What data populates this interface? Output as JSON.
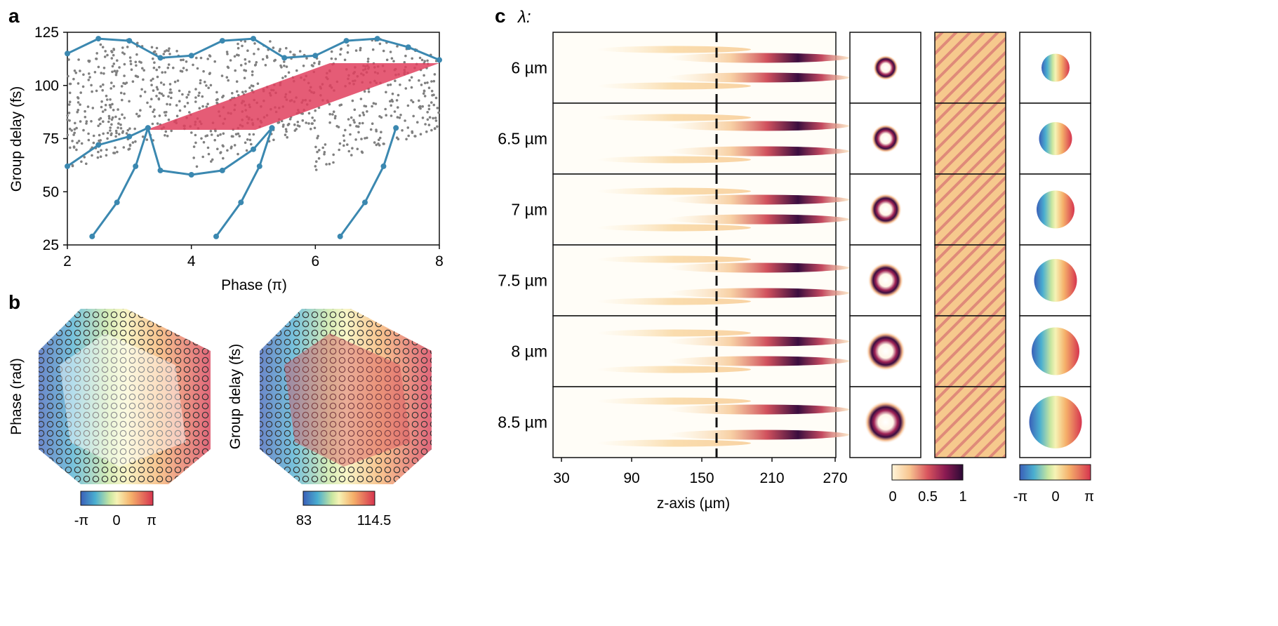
{
  "panel_a": {
    "label": "a",
    "xlabel": "Phase (π)",
    "ylabel": "Group delay (fs)",
    "xticks": [
      "2",
      "4",
      "6",
      "8"
    ],
    "yticks": [
      "25",
      "50",
      "75",
      "100",
      "125"
    ],
    "colors": {
      "scatter": "#808080",
      "boundary": "#3b88b0",
      "highlight": "#e0405e"
    }
  },
  "panel_b": {
    "label": "b",
    "left_cbar_label": "Phase (rad)",
    "left_cbar_ticks": [
      "-π",
      "0",
      "π"
    ],
    "right_cbar_label": "Group delay (fs)",
    "right_cbar_ticks": [
      "83",
      "114.5"
    ]
  },
  "panel_c": {
    "label": "c",
    "lambda_label": "λ:",
    "rows": [
      "6 µm",
      "6.5 µm",
      "7 µm",
      "7.5 µm",
      "8 µm",
      "8.5 µm"
    ],
    "xlabel": "z-axis (µm)",
    "xticks": [
      "30",
      "90",
      "150",
      "210",
      "270"
    ],
    "intensity_cbar_ticks": [
      "0",
      "0.5",
      "1"
    ],
    "phase_cbar_ticks": [
      "-π",
      "0",
      "π"
    ]
  },
  "chart_data": [
    {
      "type": "scatter",
      "panel": "a",
      "xlabel": "Phase (π)",
      "ylabel": "Group delay (fs)",
      "xlim": [
        2,
        8
      ],
      "ylim": [
        25,
        125
      ],
      "series": [
        {
          "x": [
            2.0,
            2.5,
            3.0,
            3.5,
            4.0,
            4.5,
            5.0,
            5.5,
            6.0,
            6.5,
            7.0,
            7.5,
            8.0
          ],
          "y": [
            115,
            122,
            121,
            113,
            114,
            121,
            122,
            113,
            114,
            121,
            122,
            118,
            112
          ]
        },
        {
          "x": [
            2.0,
            2.5,
            3.0,
            3.3,
            3.5,
            4.0,
            4.5,
            5.0,
            5.3
          ],
          "y": [
            62,
            72,
            76,
            80,
            60,
            58,
            60,
            70,
            80
          ]
        },
        {
          "x": [
            2.4,
            2.8,
            3.1,
            3.3
          ],
          "y": [
            29,
            45,
            62,
            80
          ]
        },
        {
          "x": [
            4.4,
            4.8,
            5.1,
            5.3
          ],
          "y": [
            29,
            45,
            62,
            80
          ]
        },
        {
          "x": [
            6.4,
            6.8,
            7.1,
            7.3
          ],
          "y": [
            29,
            45,
            62,
            80
          ]
        }
      ],
      "highlight_region": {
        "x": [
          3.3,
          8.0
        ],
        "y": [
          80,
          111
        ]
      }
    },
    {
      "type": "heatmap",
      "panel": "c",
      "xlabel": "z-axis (µm)",
      "xlim": [
        30,
        270
      ],
      "focus_z": 168,
      "rows": [
        "6 µm",
        "6.5 µm",
        "7 µm",
        "7.5 µm",
        "8 µm",
        "8.5 µm"
      ]
    }
  ]
}
